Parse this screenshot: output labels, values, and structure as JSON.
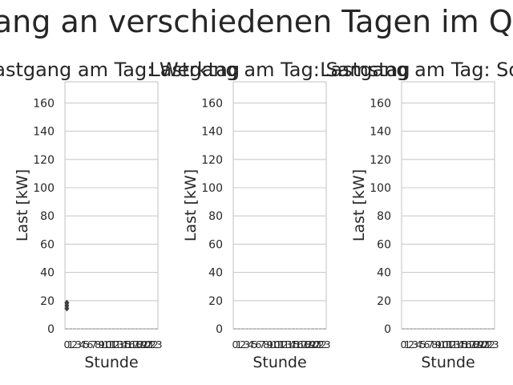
{
  "suptitle": "Lastgang an verschiedenen Tagen im Quartal",
  "chart_data": [
    {
      "type": "box",
      "title": "Lastgang am Tag: Werktag",
      "xlabel": "Stunde",
      "ylabel": "Last [kW]",
      "ylim": [
        0,
        175
      ],
      "yticks": [
        0,
        20,
        40,
        60,
        80,
        100,
        120,
        140,
        160
      ],
      "categories": [
        "0",
        "1",
        "2",
        "3",
        "4",
        "5",
        "6",
        "7",
        "8",
        "9",
        "10",
        "11",
        "12",
        "13",
        "14",
        "15",
        "16",
        "17",
        "18",
        "19",
        "20",
        "21",
        "22",
        "23"
      ],
      "box_values": [
        0,
        0,
        0,
        0,
        0,
        0,
        0,
        0,
        0,
        0,
        0,
        0,
        0,
        0,
        0,
        0,
        0,
        0,
        0,
        0,
        0,
        0,
        0,
        0
      ],
      "outliers": [
        {
          "x": "0",
          "y": 14.5
        },
        {
          "x": "0",
          "y": 16.5
        },
        {
          "x": "0",
          "y": 18.5
        }
      ],
      "grid": true
    },
    {
      "type": "box",
      "title": "Lastgang am Tag: Samstag",
      "xlabel": "Stunde",
      "ylabel": "Last [kW]",
      "ylim": [
        0,
        175
      ],
      "yticks": [
        0,
        20,
        40,
        60,
        80,
        100,
        120,
        140,
        160
      ],
      "categories": [
        "0",
        "1",
        "2",
        "3",
        "4",
        "5",
        "6",
        "7",
        "8",
        "9",
        "10",
        "11",
        "12",
        "13",
        "14",
        "15",
        "16",
        "17",
        "18",
        "19",
        "20",
        "21",
        "22",
        "23"
      ],
      "box_values": [
        0,
        0,
        0,
        0,
        0,
        0,
        0,
        0,
        0,
        0,
        0,
        0,
        0,
        0,
        0,
        0,
        0,
        0,
        0,
        0,
        0,
        0,
        0,
        0
      ],
      "outliers": [],
      "grid": true
    },
    {
      "type": "box",
      "title": "Lastgang am Tag: Sonntag",
      "xlabel": "Stunde",
      "ylabel": "Last [kW]",
      "ylim": [
        0,
        175
      ],
      "yticks": [
        0,
        20,
        40,
        60,
        80,
        100,
        120,
        140,
        160
      ],
      "categories": [
        "0",
        "1",
        "2",
        "3",
        "4",
        "5",
        "6",
        "7",
        "8",
        "9",
        "10",
        "11",
        "12",
        "13",
        "14",
        "15",
        "16",
        "17",
        "18",
        "19",
        "20",
        "21",
        "22",
        "23"
      ],
      "box_values": [
        0,
        0,
        0,
        0,
        0,
        0,
        0,
        0,
        0,
        0,
        0,
        0,
        0,
        0,
        0,
        0,
        0,
        0,
        0,
        0,
        0,
        0,
        0,
        0
      ],
      "outliers": [],
      "grid": true
    }
  ]
}
